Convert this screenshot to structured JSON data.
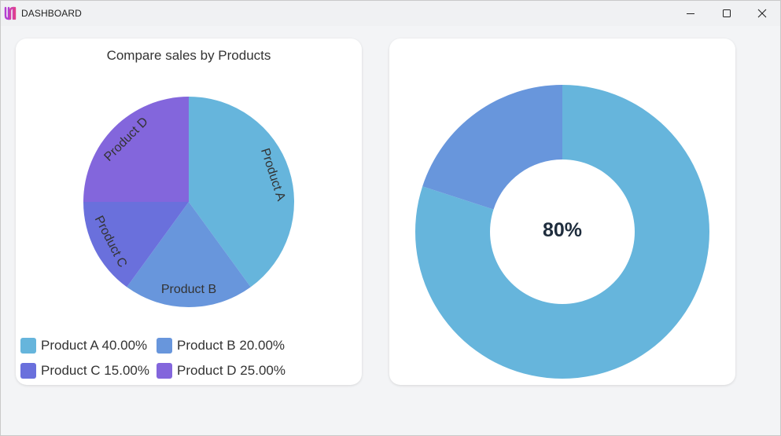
{
  "window": {
    "title": "DASHBOARD",
    "logo_icon": "app-logo-icon",
    "controls": {
      "minimize_icon": "minimize-icon",
      "maximize_icon": "maximize-icon",
      "close_icon": "close-icon"
    }
  },
  "pie_card": {
    "title": "Compare sales by Products"
  },
  "donut_card": {
    "center_label": "80%"
  },
  "colors": {
    "product_a": "#66b5dc",
    "product_b": "#6896dc",
    "product_c": "#6a70dc",
    "product_d": "#8366dc"
  },
  "chart_data": [
    {
      "type": "pie",
      "title": "Compare sales by Products",
      "categories": [
        "Product A",
        "Product B",
        "Product C",
        "Product D"
      ],
      "values": [
        40,
        20,
        15,
        25
      ],
      "slice_labels": [
        "Product A",
        "Product B",
        "Product C",
        "Product D"
      ],
      "legend": [
        "Product A 40.00%",
        "Product B 20.00%",
        "Product C 15.00%",
        "Product D 25.00%"
      ],
      "legend_placement": "bottom"
    },
    {
      "type": "pie",
      "variant": "donut",
      "values": [
        80,
        20
      ],
      "center_text": "80%"
    }
  ]
}
